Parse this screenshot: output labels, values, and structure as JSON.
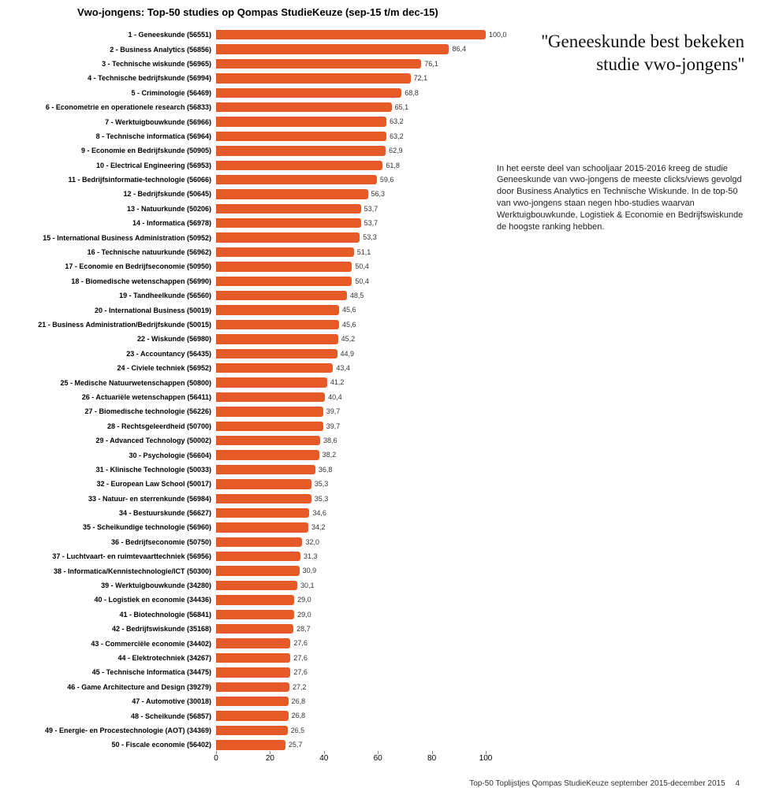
{
  "chart": {
    "title": "Vwo-jongens: Top-50 studies op Qompas StudieKeuze (sep-15 t/m dec-15)",
    "type": "bar",
    "bar_color": "#e65a28",
    "value_text_color": "#333333",
    "category_fontsize": 9,
    "value_fontsize": 9,
    "title_fontsize": 13,
    "xlim": [
      0,
      100
    ],
    "xticks": [
      0,
      20,
      40,
      60,
      80,
      100
    ],
    "xtick_labels": [
      "0",
      "20",
      "40",
      "60",
      "80",
      "100"
    ],
    "background_color": "#ffffff",
    "tick_color": "#888888",
    "categories": [
      "1 - Geneeskunde (56551)",
      "2 - Business Analytics (56856)",
      "3 - Technische wiskunde (56965)",
      "4 - Technische bedrijfskunde (56994)",
      "5 - Criminologie (56469)",
      "6 - Econometrie en operationele research (56833)",
      "7 - Werktuigbouwkunde (56966)",
      "8 - Technische informatica (56964)",
      "9 - Economie en Bedrijfskunde (50905)",
      "10 - Electrical Engineering (56953)",
      "11 - Bedrijfsinformatie-technologie (56066)",
      "12 - Bedrijfskunde (50645)",
      "13 - Natuurkunde (50206)",
      "14 - Informatica (56978)",
      "15 - International Business Administration (50952)",
      "16 - Technische natuurkunde (56962)",
      "17 - Economie en Bedrijfseconomie (50950)",
      "18 - Biomedische wetenschappen (56990)",
      "19 - Tandheelkunde (56560)",
      "20 - International Business (50019)",
      "21 - Business Administration/Bedrijfskunde (50015)",
      "22 - Wiskunde (56980)",
      "23 - Accountancy (56435)",
      "24 - Civiele techniek (56952)",
      "25 - Medische Natuurwetenschappen (50800)",
      "26 - Actuariële wetenschappen (56411)",
      "27 - Biomedische technologie (56226)",
      "28 - Rechtsgeleerdheid (50700)",
      "29 - Advanced Technology (50002)",
      "30 - Psychologie (56604)",
      "31 - Klinische Technologie (50033)",
      "32 - European Law School (50017)",
      "33 - Natuur- en sterrenkunde (56984)",
      "34 - Bestuurskunde (56627)",
      "35 - Scheikundige technologie (56960)",
      "36 - Bedrijfseconomie (50750)",
      "37 - Luchtvaart- en ruimtevaarttechniek (56956)",
      "38 - Informatica/Kennistechnologie/ICT (50300)",
      "39 - Werktuigbouwkunde (34280)",
      "40 - Logistiek en economie (34436)",
      "41 - Biotechnologie (56841)",
      "42 - Bedrijfswiskunde (35168)",
      "43 - Commerciële economie (34402)",
      "44 - Elektrotechniek (34267)",
      "45 - Technische Informatica (34475)",
      "46 - Game Architecture and Design (39279)",
      "47 - Automotive (30018)",
      "48 - Scheikunde (56857)",
      "49 - Energie- en Procestechnologie (AOT) (34369)",
      "50 - Fiscale economie (56402)"
    ],
    "values": [
      100.0,
      86.4,
      76.1,
      72.1,
      68.8,
      65.1,
      63.2,
      63.2,
      62.9,
      61.8,
      59.6,
      56.3,
      53.7,
      53.7,
      53.3,
      51.1,
      50.4,
      50.4,
      48.5,
      45.6,
      45.6,
      45.2,
      44.9,
      43.4,
      41.2,
      40.4,
      39.7,
      39.7,
      38.6,
      38.2,
      36.8,
      35.3,
      35.3,
      34.6,
      34.2,
      32.0,
      31.3,
      30.9,
      30.1,
      29.0,
      29.0,
      28.7,
      27.6,
      27.6,
      27.6,
      27.2,
      26.8,
      26.8,
      26.5,
      25.7
    ],
    "value_labels": [
      "100,0",
      "86,4",
      "76,1",
      "72,1",
      "68,8",
      "65,1",
      "63,2",
      "63,2",
      "62,9",
      "61,8",
      "59,6",
      "56,3",
      "53,7",
      "53,7",
      "53,3",
      "51,1",
      "50,4",
      "50,4",
      "48,5",
      "45,6",
      "45,6",
      "45,2",
      "44,9",
      "43,4",
      "41,2",
      "40,4",
      "39,7",
      "39,7",
      "38,6",
      "38,2",
      "36,8",
      "35,3",
      "35,3",
      "34,6",
      "34,2",
      "32,0",
      "31,3",
      "30,9",
      "30,1",
      "29,0",
      "29,0",
      "28,7",
      "27,6",
      "27,6",
      "27,6",
      "27,2",
      "26,8",
      "26,8",
      "26,5",
      "25,7"
    ]
  },
  "right": {
    "quote": "''Geneeskunde best bekeken studie vwo-jongens''",
    "paragraph": "In het eerste deel van schooljaar 2015-2016 kreeg de studie Geneeskunde van vwo-jongens de meeste clicks/views gevolgd door Business Analytics en Technische Wiskunde. In de top-50 van vwo-jongens staan negen hbo-studies waarvan Werktuigbouwkunde, Logistiek & Economie en Bedrijfswiskunde de hoogste ranking hebben."
  },
  "footer": {
    "text": "Top-50 Toplijstjes Qompas StudieKeuze september 2015-december 2015",
    "page": "4"
  }
}
